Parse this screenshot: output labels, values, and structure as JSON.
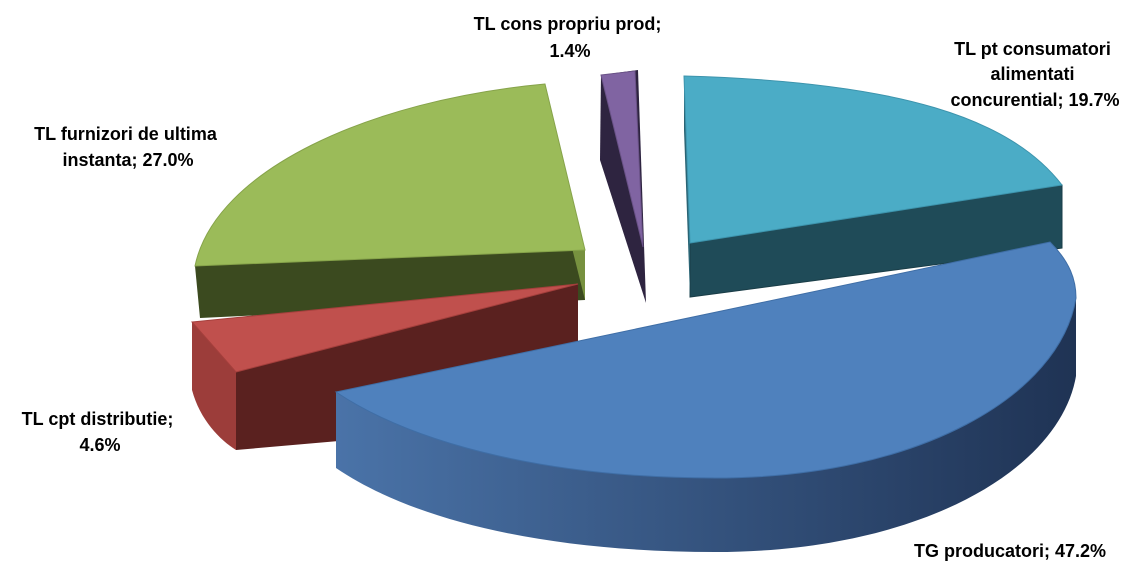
{
  "chart_data": {
    "type": "pie",
    "title": "",
    "slices": [
      {
        "label_lines": [
          "TL pt consumatori",
          "alimentati",
          "concurential; 19.7%"
        ],
        "value": 19.7,
        "color": "#4bacc6"
      },
      {
        "label_lines": [
          "TG producatori; 47.2%"
        ],
        "value": 47.2,
        "color": "#4f81bd"
      },
      {
        "label_lines": [
          "TL cpt distributie;",
          "4.6%"
        ],
        "value": 4.6,
        "color": "#c0504d"
      },
      {
        "label_lines": [
          "TL furnizori de ultima",
          "instanta; 27.0%"
        ],
        "value": 27.0,
        "color": "#9bbb59"
      },
      {
        "label_lines": [
          "TL cons propriu prod;",
          "1.4%"
        ],
        "value": 1.4,
        "color": "#8064a2"
      }
    ],
    "legend": "none",
    "style": "3d-exploded"
  }
}
